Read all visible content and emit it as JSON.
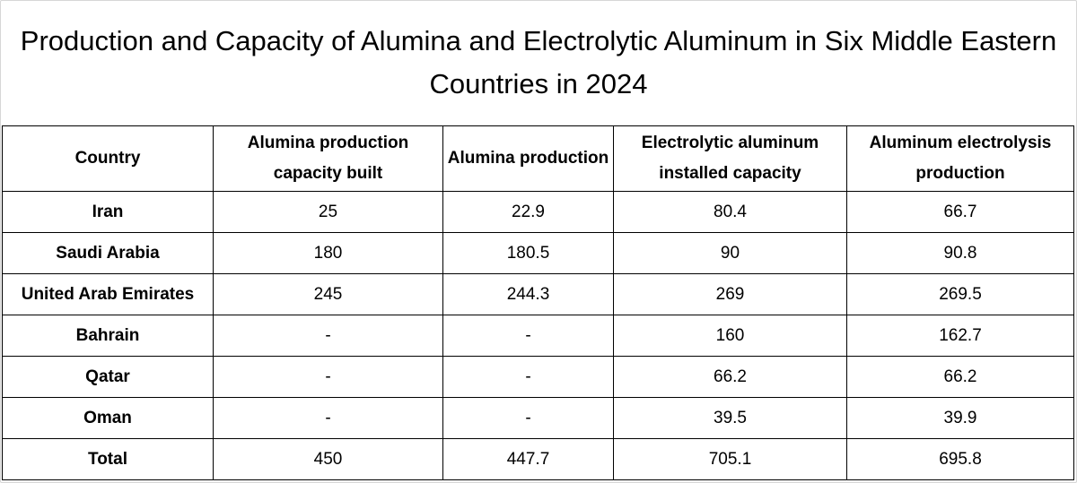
{
  "chart_data": {
    "type": "table",
    "title": "Production and Capacity of Alumina and Electrolytic Aluminum in Six Middle Eastern Countries in 2024",
    "columns": [
      "Country",
      "Alumina production capacity built",
      "Alumina production",
      "Electrolytic aluminum installed capacity",
      "Aluminum electrolysis production"
    ],
    "rows": [
      [
        "Iran",
        "25",
        "22.9",
        "80.4",
        "66.7"
      ],
      [
        "Saudi Arabia",
        "180",
        "180.5",
        "90",
        "90.8"
      ],
      [
        "United Arab Emirates",
        "245",
        "244.3",
        "269",
        "269.5"
      ],
      [
        "Bahrain",
        "-",
        "-",
        "160",
        "162.7"
      ],
      [
        "Qatar",
        "-",
        "-",
        "66.2",
        "66.2"
      ],
      [
        "Oman",
        "-",
        "-",
        "39.5",
        "39.9"
      ],
      [
        "Total",
        "450",
        "447.7",
        "705.1",
        "695.8"
      ]
    ]
  }
}
